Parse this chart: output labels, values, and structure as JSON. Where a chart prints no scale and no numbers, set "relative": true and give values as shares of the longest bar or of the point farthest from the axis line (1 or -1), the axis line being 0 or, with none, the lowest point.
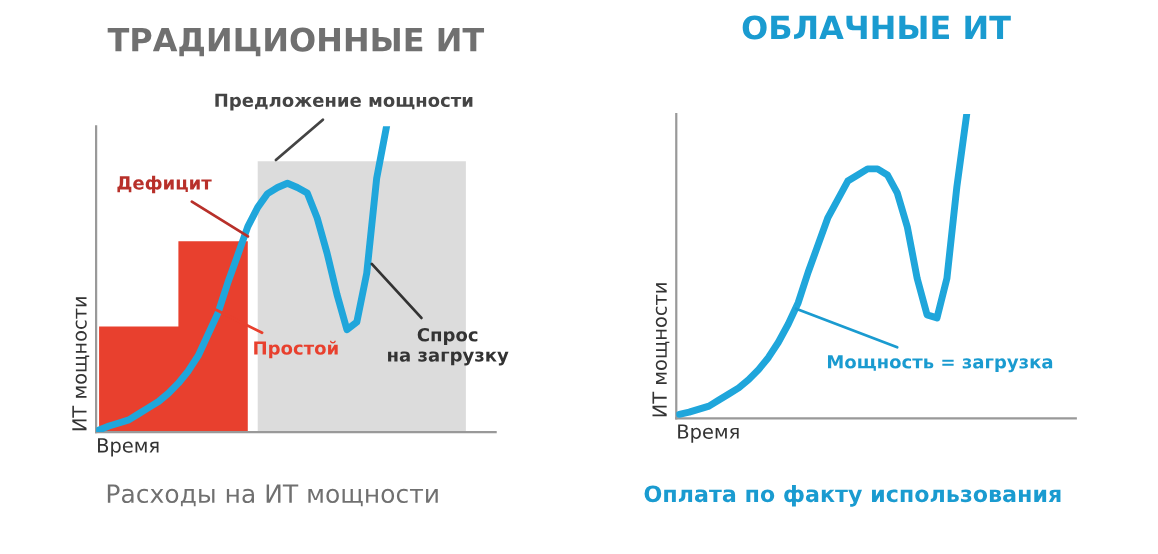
{
  "chart_data": [
    {
      "type": "line",
      "title": "ТРАДИЦИОННЫЕ ИТ",
      "xlabel": "Время",
      "ylabel": "ИТ мощности",
      "relative": true,
      "tick_labels": false,
      "categories": [
        null,
        null,
        null,
        null,
        null,
        null,
        null,
        null,
        null,
        null,
        null,
        null,
        null,
        null,
        null,
        null,
        null,
        null,
        null,
        null,
        null,
        null,
        null,
        null,
        null,
        null,
        null,
        null,
        null,
        null,
        null,
        null,
        null,
        null,
        null,
        null,
        null,
        null,
        null,
        null,
        null
      ],
      "series": [
        {
          "type": "area",
          "color": "#e8402e",
          "values": [
            0.345,
            0.345,
            0.345,
            0.345,
            0.345,
            0.345,
            0.345,
            0.345,
            0.624,
            0.624,
            0.624,
            0.624,
            0.624,
            0.624,
            0.624,
            0.624,
            null,
            null,
            null,
            null,
            null,
            null,
            null,
            null,
            null,
            null,
            null,
            null,
            null,
            null,
            null,
            null,
            null,
            null,
            null,
            null,
            null,
            null,
            null,
            null,
            null
          ]
        },
        {
          "type": "area",
          "color": "#dcdcdc",
          "values": [
            null,
            null,
            null,
            null,
            null,
            null,
            null,
            null,
            null,
            null,
            null,
            null,
            null,
            null,
            null,
            null,
            0.886,
            0.886,
            0.886,
            0.886,
            0.886,
            0.886,
            0.886,
            0.886,
            0.886,
            0.886,
            0.886,
            0.886,
            0.886,
            0.886,
            0.886,
            0.886,
            0.886,
            0.886,
            0.886,
            0.886,
            0.886,
            0.886,
            null,
            null,
            null
          ]
        },
        {
          "color": "#1fa6db",
          "values": [
            0.007,
            0.02,
            0.03,
            0.04,
            0.06,
            0.08,
            0.1,
            0.127,
            0.16,
            0.2,
            0.25,
            0.32,
            0.39,
            0.49,
            0.58,
            0.672,
            0.735,
            0.78,
            0.8,
            0.814,
            0.8,
            0.782,
            0.7,
            0.585,
            0.45,
            0.335,
            0.36,
            0.52,
            0.83,
            1.0,
            null,
            null,
            null,
            null,
            null,
            null,
            null,
            null,
            null,
            null,
            null
          ]
        }
      ],
      "annotations": [
        "Предложение мощности",
        "Дефицит",
        "Простой",
        "Спрос\nна загрузку",
        "Расходы на ИТ мощности"
      ]
    },
    {
      "type": "line",
      "title": "ОБЛАЧНЫЕ ИТ",
      "xlabel": "Время",
      "ylabel": "ИТ мощности",
      "relative": true,
      "tick_labels": false,
      "categories": [
        null,
        null,
        null,
        null,
        null,
        null,
        null,
        null,
        null,
        null,
        null,
        null,
        null,
        null,
        null,
        null,
        null,
        null,
        null,
        null,
        null,
        null,
        null,
        null,
        null,
        null,
        null,
        null,
        null,
        null,
        null,
        null,
        null,
        null,
        null,
        null,
        null,
        null,
        null,
        null,
        null
      ],
      "series": [
        {
          "color": "#1fa6db",
          "values": [
            0.013,
            0.02,
            0.03,
            0.04,
            0.06,
            0.08,
            0.1,
            0.127,
            0.16,
            0.2,
            0.25,
            0.31,
            0.38,
            0.48,
            0.57,
            0.66,
            0.72,
            0.78,
            0.8,
            0.82,
            0.82,
            0.8,
            0.74,
            0.63,
            0.46,
            0.34,
            0.33,
            0.46,
            0.76,
            1.0,
            null,
            null,
            null,
            null,
            null,
            null,
            null,
            null,
            null,
            null,
            null
          ]
        }
      ],
      "annotations": [
        "Мощность = загрузка",
        "Оплата по факту использования"
      ]
    }
  ]
}
